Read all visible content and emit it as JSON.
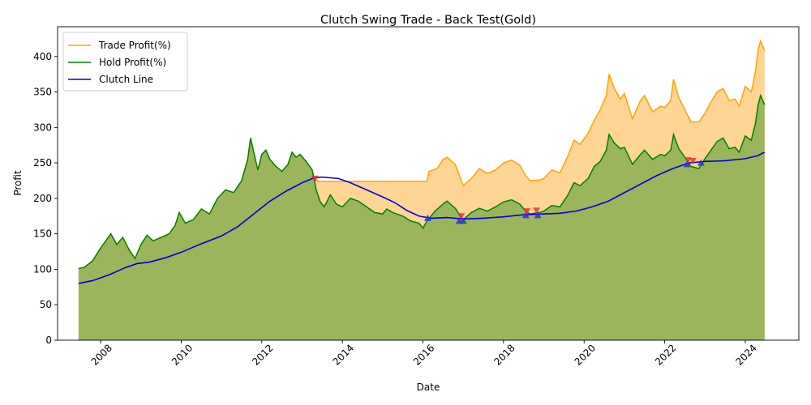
{
  "chart_data": {
    "type": "line",
    "title": "Clutch Swing Trade - Back Test(Gold)",
    "xlabel": "Date",
    "ylabel": "Profit",
    "xlim": [
      2006.93,
      2025.33
    ],
    "ylim": [
      0,
      442
    ],
    "x_ticks": [
      2008,
      2010,
      2012,
      2014,
      2016,
      2018,
      2020,
      2022,
      2024
    ],
    "y_ticks": [
      0,
      50,
      100,
      150,
      200,
      250,
      300,
      350,
      400
    ],
    "legend_position": "upper-left",
    "colors": {
      "trade": "#ffa500",
      "trade_fill": "#ffd595",
      "hold": "#008000",
      "hold_fill": "#9ab55b",
      "clutch": "#0000dd",
      "buy_marker": "#3030d0",
      "sell_marker": "#e03030"
    },
    "series": [
      {
        "name": "Trade Profit(%)",
        "key": "trade",
        "points": [
          [
            2007.45,
            101
          ],
          [
            2007.6,
            103
          ],
          [
            2007.8,
            112
          ],
          [
            2008.0,
            130
          ],
          [
            2008.15,
            142
          ],
          [
            2008.25,
            150
          ],
          [
            2008.4,
            135
          ],
          [
            2008.55,
            145
          ],
          [
            2008.7,
            128
          ],
          [
            2008.85,
            115
          ],
          [
            2009.0,
            135
          ],
          [
            2009.15,
            148
          ],
          [
            2009.3,
            140
          ],
          [
            2009.5,
            145
          ],
          [
            2009.7,
            150
          ],
          [
            2009.85,
            162
          ],
          [
            2009.95,
            180
          ],
          [
            2010.1,
            165
          ],
          [
            2010.3,
            170
          ],
          [
            2010.5,
            185
          ],
          [
            2010.7,
            178
          ],
          [
            2010.9,
            200
          ],
          [
            2011.1,
            212
          ],
          [
            2011.3,
            208
          ],
          [
            2011.5,
            225
          ],
          [
            2011.65,
            255
          ],
          [
            2011.72,
            285
          ],
          [
            2011.8,
            265
          ],
          [
            2011.9,
            240
          ],
          [
            2012.0,
            262
          ],
          [
            2012.1,
            268
          ],
          [
            2012.2,
            255
          ],
          [
            2012.35,
            245
          ],
          [
            2012.5,
            238
          ],
          [
            2012.65,
            248
          ],
          [
            2012.75,
            265
          ],
          [
            2012.85,
            258
          ],
          [
            2012.95,
            262
          ],
          [
            2013.1,
            252
          ],
          [
            2013.25,
            240
          ],
          [
            2013.3,
            228
          ],
          [
            2013.4,
            224
          ],
          [
            2016.1,
            224
          ],
          [
            2016.15,
            238
          ],
          [
            2016.35,
            242
          ],
          [
            2016.5,
            255
          ],
          [
            2016.6,
            258
          ],
          [
            2016.8,
            248
          ],
          [
            2016.92,
            230
          ],
          [
            2017.0,
            218
          ],
          [
            2017.2,
            228
          ],
          [
            2017.4,
            242
          ],
          [
            2017.6,
            235
          ],
          [
            2017.8,
            240
          ],
          [
            2018.0,
            250
          ],
          [
            2018.2,
            254
          ],
          [
            2018.4,
            247
          ],
          [
            2018.55,
            232
          ],
          [
            2018.65,
            225
          ],
          [
            2018.9,
            226
          ],
          [
            2019.0,
            228
          ],
          [
            2019.2,
            240
          ],
          [
            2019.4,
            236
          ],
          [
            2019.6,
            260
          ],
          [
            2019.75,
            282
          ],
          [
            2019.9,
            276
          ],
          [
            2020.1,
            292
          ],
          [
            2020.25,
            310
          ],
          [
            2020.4,
            325
          ],
          [
            2020.55,
            345
          ],
          [
            2020.62,
            375
          ],
          [
            2020.75,
            355
          ],
          [
            2020.9,
            340
          ],
          [
            2021.0,
            348
          ],
          [
            2021.2,
            312
          ],
          [
            2021.4,
            338
          ],
          [
            2021.5,
            345
          ],
          [
            2021.7,
            322
          ],
          [
            2021.9,
            330
          ],
          [
            2022.0,
            328
          ],
          [
            2022.15,
            338
          ],
          [
            2022.22,
            368
          ],
          [
            2022.35,
            342
          ],
          [
            2022.5,
            325
          ],
          [
            2022.65,
            308
          ],
          [
            2022.85,
            308
          ],
          [
            2023.0,
            320
          ],
          [
            2023.15,
            336
          ],
          [
            2023.3,
            350
          ],
          [
            2023.45,
            355
          ],
          [
            2023.6,
            338
          ],
          [
            2023.75,
            340
          ],
          [
            2023.85,
            330
          ],
          [
            2024.0,
            358
          ],
          [
            2024.15,
            350
          ],
          [
            2024.25,
            378
          ],
          [
            2024.32,
            410
          ],
          [
            2024.38,
            422
          ],
          [
            2024.48,
            408
          ]
        ]
      },
      {
        "name": "Hold Profit(%)",
        "key": "hold",
        "points": [
          [
            2007.45,
            101
          ],
          [
            2007.6,
            103
          ],
          [
            2007.8,
            112
          ],
          [
            2008.0,
            130
          ],
          [
            2008.15,
            142
          ],
          [
            2008.25,
            150
          ],
          [
            2008.4,
            135
          ],
          [
            2008.55,
            145
          ],
          [
            2008.7,
            128
          ],
          [
            2008.85,
            115
          ],
          [
            2009.0,
            135
          ],
          [
            2009.15,
            148
          ],
          [
            2009.3,
            140
          ],
          [
            2009.5,
            145
          ],
          [
            2009.7,
            150
          ],
          [
            2009.85,
            162
          ],
          [
            2009.95,
            180
          ],
          [
            2010.1,
            165
          ],
          [
            2010.3,
            170
          ],
          [
            2010.5,
            185
          ],
          [
            2010.7,
            178
          ],
          [
            2010.9,
            200
          ],
          [
            2011.1,
            212
          ],
          [
            2011.3,
            208
          ],
          [
            2011.5,
            225
          ],
          [
            2011.65,
            255
          ],
          [
            2011.72,
            285
          ],
          [
            2011.8,
            265
          ],
          [
            2011.9,
            240
          ],
          [
            2012.0,
            262
          ],
          [
            2012.1,
            268
          ],
          [
            2012.2,
            255
          ],
          [
            2012.35,
            245
          ],
          [
            2012.5,
            238
          ],
          [
            2012.65,
            248
          ],
          [
            2012.75,
            265
          ],
          [
            2012.85,
            258
          ],
          [
            2012.95,
            262
          ],
          [
            2013.1,
            252
          ],
          [
            2013.25,
            240
          ],
          [
            2013.35,
            212
          ],
          [
            2013.45,
            195
          ],
          [
            2013.55,
            188
          ],
          [
            2013.7,
            205
          ],
          [
            2013.85,
            192
          ],
          [
            2014.0,
            188
          ],
          [
            2014.2,
            200
          ],
          [
            2014.4,
            196
          ],
          [
            2014.6,
            188
          ],
          [
            2014.8,
            180
          ],
          [
            2015.0,
            178
          ],
          [
            2015.1,
            185
          ],
          [
            2015.25,
            180
          ],
          [
            2015.5,
            175
          ],
          [
            2015.7,
            168
          ],
          [
            2015.9,
            165
          ],
          [
            2016.0,
            158
          ],
          [
            2016.1,
            168
          ],
          [
            2016.3,
            182
          ],
          [
            2016.5,
            192
          ],
          [
            2016.6,
            196
          ],
          [
            2016.8,
            186
          ],
          [
            2016.92,
            176
          ],
          [
            2017.0,
            170
          ],
          [
            2017.2,
            180
          ],
          [
            2017.4,
            186
          ],
          [
            2017.6,
            182
          ],
          [
            2017.8,
            188
          ],
          [
            2018.0,
            195
          ],
          [
            2018.2,
            198
          ],
          [
            2018.4,
            192
          ],
          [
            2018.55,
            182
          ],
          [
            2018.65,
            178
          ],
          [
            2018.9,
            180
          ],
          [
            2019.0,
            182
          ],
          [
            2019.2,
            190
          ],
          [
            2019.4,
            188
          ],
          [
            2019.6,
            205
          ],
          [
            2019.75,
            222
          ],
          [
            2019.9,
            218
          ],
          [
            2020.1,
            228
          ],
          [
            2020.25,
            245
          ],
          [
            2020.4,
            252
          ],
          [
            2020.55,
            268
          ],
          [
            2020.62,
            290
          ],
          [
            2020.75,
            278
          ],
          [
            2020.9,
            270
          ],
          [
            2021.0,
            272
          ],
          [
            2021.2,
            248
          ],
          [
            2021.4,
            262
          ],
          [
            2021.5,
            268
          ],
          [
            2021.7,
            255
          ],
          [
            2021.9,
            262
          ],
          [
            2022.0,
            260
          ],
          [
            2022.15,
            268
          ],
          [
            2022.22,
            290
          ],
          [
            2022.35,
            270
          ],
          [
            2022.5,
            258
          ],
          [
            2022.65,
            245
          ],
          [
            2022.85,
            242
          ],
          [
            2023.0,
            256
          ],
          [
            2023.15,
            268
          ],
          [
            2023.3,
            280
          ],
          [
            2023.45,
            285
          ],
          [
            2023.6,
            270
          ],
          [
            2023.75,
            272
          ],
          [
            2023.85,
            265
          ],
          [
            2024.0,
            288
          ],
          [
            2024.15,
            282
          ],
          [
            2024.25,
            305
          ],
          [
            2024.32,
            332
          ],
          [
            2024.38,
            345
          ],
          [
            2024.48,
            332
          ]
        ]
      },
      {
        "name": "Clutch Line",
        "key": "clutch",
        "points": [
          [
            2007.45,
            80
          ],
          [
            2007.8,
            84
          ],
          [
            2008.2,
            92
          ],
          [
            2008.6,
            102
          ],
          [
            2008.9,
            108
          ],
          [
            2009.2,
            110
          ],
          [
            2009.6,
            116
          ],
          [
            2010.0,
            124
          ],
          [
            2010.5,
            136
          ],
          [
            2011.0,
            147
          ],
          [
            2011.4,
            160
          ],
          [
            2011.8,
            178
          ],
          [
            2012.2,
            196
          ],
          [
            2012.6,
            210
          ],
          [
            2013.0,
            222
          ],
          [
            2013.3,
            229
          ],
          [
            2013.5,
            230
          ],
          [
            2013.9,
            228
          ],
          [
            2014.2,
            222
          ],
          [
            2014.6,
            212
          ],
          [
            2015.0,
            202
          ],
          [
            2015.3,
            194
          ],
          [
            2015.6,
            183
          ],
          [
            2015.9,
            175
          ],
          [
            2016.2,
            172
          ],
          [
            2016.6,
            173
          ],
          [
            2017.0,
            171
          ],
          [
            2017.5,
            172
          ],
          [
            2018.0,
            174
          ],
          [
            2018.5,
            177
          ],
          [
            2019.0,
            178
          ],
          [
            2019.4,
            179
          ],
          [
            2019.8,
            182
          ],
          [
            2020.2,
            188
          ],
          [
            2020.6,
            196
          ],
          [
            2021.0,
            208
          ],
          [
            2021.4,
            220
          ],
          [
            2021.8,
            232
          ],
          [
            2022.2,
            242
          ],
          [
            2022.6,
            250
          ],
          [
            2023.0,
            252
          ],
          [
            2023.5,
            253
          ],
          [
            2024.0,
            256
          ],
          [
            2024.3,
            260
          ],
          [
            2024.48,
            265
          ]
        ]
      }
    ],
    "buy_markers": [
      [
        2016.12,
        172
      ],
      [
        2016.9,
        168
      ],
      [
        2017.0,
        168
      ],
      [
        2018.55,
        176
      ],
      [
        2018.85,
        176
      ],
      [
        2022.55,
        248
      ],
      [
        2022.9,
        250
      ]
    ],
    "sell_markers": [
      [
        2013.32,
        228
      ],
      [
        2016.95,
        175
      ],
      [
        2018.58,
        182
      ],
      [
        2018.82,
        183
      ],
      [
        2022.58,
        254
      ],
      [
        2022.7,
        253
      ]
    ]
  }
}
